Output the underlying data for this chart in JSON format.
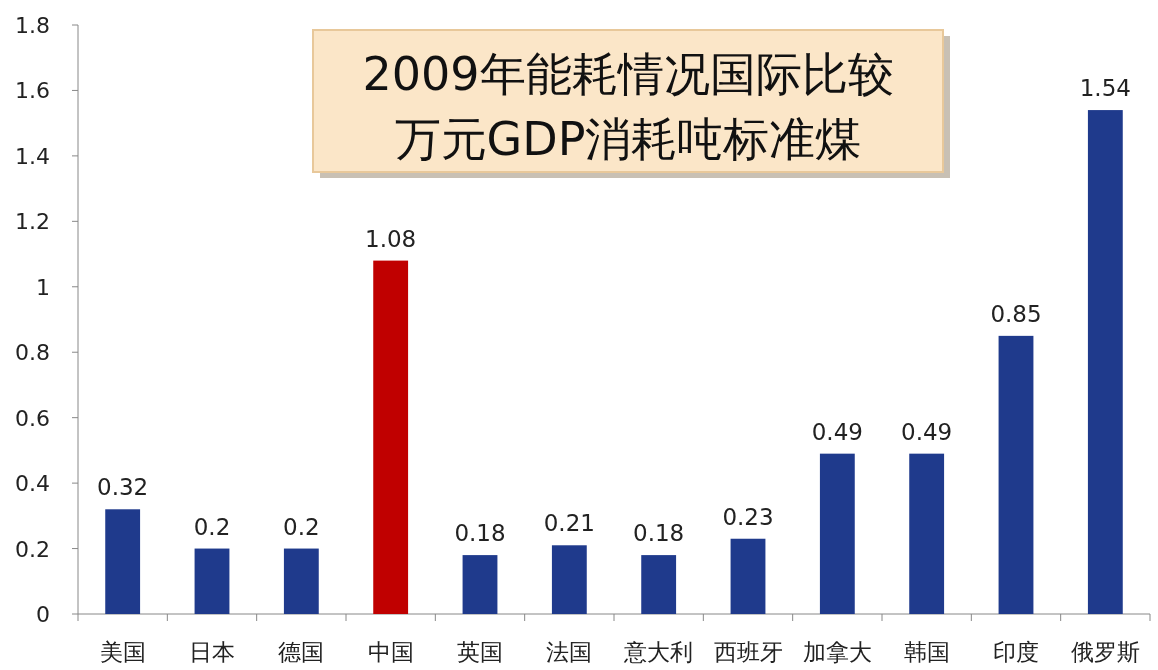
{
  "chart_data": {
    "type": "bar",
    "title": "2009年能耗情况国际比较",
    "subtitle": "万元GDP消耗吨标准煤",
    "categories": [
      "美国",
      "日本",
      "德国",
      "中国",
      "英国",
      "法国",
      "意大利",
      "西班牙",
      "加拿大",
      "韩国",
      "印度",
      "俄罗斯"
    ],
    "values": [
      0.32,
      0.2,
      0.2,
      1.08,
      0.18,
      0.21,
      0.18,
      0.23,
      0.49,
      0.49,
      0.85,
      1.54
    ],
    "colors": [
      "#1f3a8c",
      "#1f3a8c",
      "#1f3a8c",
      "#c00000",
      "#1f3a8c",
      "#1f3a8c",
      "#1f3a8c",
      "#1f3a8c",
      "#1f3a8c",
      "#1f3a8c",
      "#1f3a8c",
      "#1f3a8c"
    ],
    "ylim": [
      0,
      1.8
    ],
    "yticks": [
      0,
      0.2,
      0.4,
      0.6,
      0.8,
      1,
      1.2,
      1.4,
      1.6,
      1.8
    ],
    "data_labels": true
  }
}
